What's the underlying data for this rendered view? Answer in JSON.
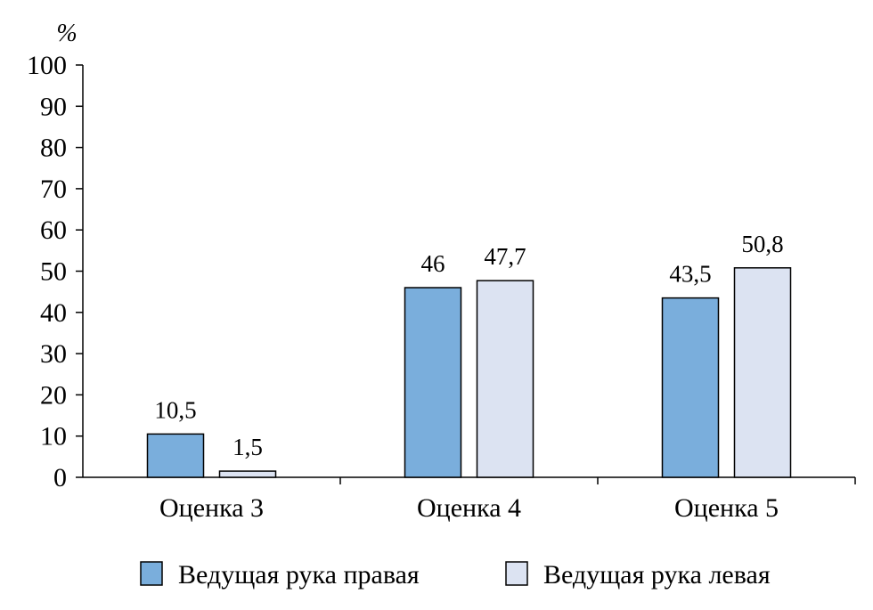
{
  "chart_data": {
    "type": "bar",
    "y_unit": "%",
    "categories": [
      "Оценка 3",
      "Оценка 4",
      "Оценка 5"
    ],
    "series": [
      {
        "name": "Ведущая рука правая",
        "values": [
          10.5,
          46,
          43.5
        ],
        "labels": [
          "10,5",
          "46",
          "43,5"
        ],
        "color": "#7aaedc"
      },
      {
        "name": "Ведущая рука левая",
        "values": [
          1.5,
          47.7,
          50.8
        ],
        "labels": [
          "1,5",
          "47,7",
          "50,8"
        ],
        "color": "#dce3f2"
      }
    ],
    "ylim": [
      0,
      100
    ],
    "yticks": [
      0,
      10,
      20,
      30,
      40,
      50,
      60,
      70,
      80,
      90,
      100
    ],
    "ytick_labels": [
      "0",
      "10",
      "20",
      "30",
      "40",
      "50",
      "60",
      "70",
      "80",
      "90",
      "100"
    ],
    "grid": false,
    "legend_position": "bottom"
  }
}
